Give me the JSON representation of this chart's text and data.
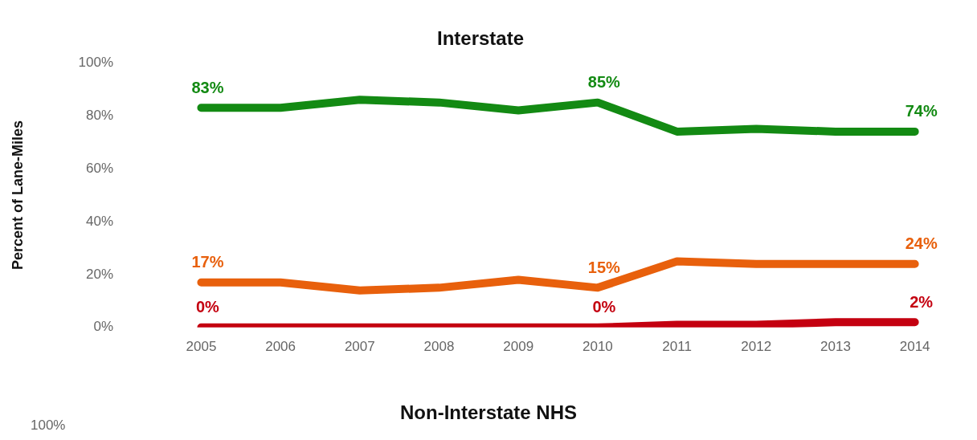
{
  "chart_data": [
    {
      "type": "line",
      "title": "Interstate",
      "ylabel": "Percent of Lane-Miles",
      "categories": [
        "2005",
        "2006",
        "2007",
        "2008",
        "2009",
        "2010",
        "2011",
        "2012",
        "2013",
        "2014"
      ],
      "series": [
        {
          "color": "#138a13",
          "values": [
            83,
            83,
            86,
            85,
            82,
            85,
            74,
            75,
            74,
            74
          ],
          "value_labels": [
            "83%",
            null,
            null,
            null,
            null,
            "85%",
            null,
            null,
            null,
            "74%"
          ]
        },
        {
          "color": "#e8600c",
          "values": [
            17,
            17,
            14,
            15,
            18,
            15,
            25,
            24,
            24,
            24
          ],
          "value_labels": [
            "17%",
            null,
            null,
            null,
            null,
            "15%",
            null,
            null,
            null,
            "24%"
          ]
        },
        {
          "color": "#c40010",
          "values": [
            0,
            0,
            0,
            0,
            0,
            0,
            1,
            1,
            2,
            2
          ],
          "value_labels": [
            "0%",
            null,
            null,
            null,
            null,
            "0%",
            null,
            null,
            null,
            "2%"
          ]
        }
      ],
      "ylim": [
        0,
        100
      ],
      "yticks": [
        {
          "value": 0,
          "label": "0%"
        },
        {
          "value": 20,
          "label": "20%"
        },
        {
          "value": 40,
          "label": "40%"
        },
        {
          "value": 60,
          "label": "60%"
        },
        {
          "value": 80,
          "label": "80%"
        },
        {
          "value": 100,
          "label": "100%"
        }
      ],
      "grid": false,
      "legend": false,
      "marker": "none",
      "line_style": "solid"
    },
    {
      "type": "other",
      "title": "Non-Interstate NHS",
      "annotations": [
        "100%"
      ]
    }
  ]
}
